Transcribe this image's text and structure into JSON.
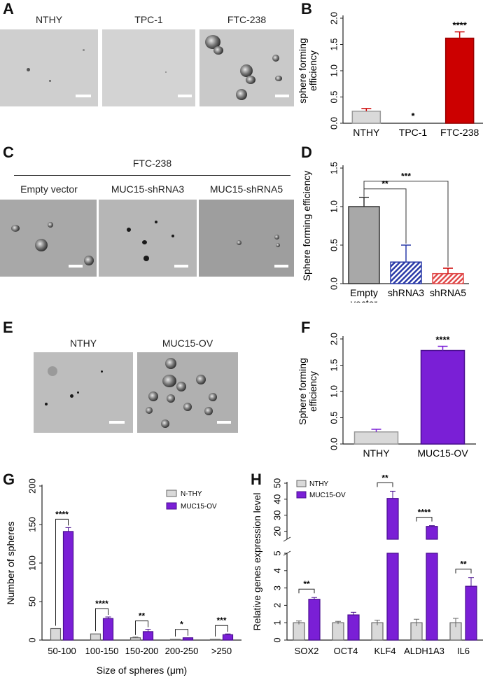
{
  "panels": {
    "A": {
      "letter": "A",
      "images": [
        "NTHY",
        "TPC-1",
        "FTC-238"
      ]
    },
    "B": {
      "letter": "B"
    },
    "C": {
      "letter": "C",
      "header": "FTC-238",
      "images": [
        "Empty vector",
        "MUC15-shRNA3",
        "MUC15-shRNA5"
      ]
    },
    "D": {
      "letter": "D"
    },
    "E": {
      "letter": "E",
      "images": [
        "NTHY",
        "MUC15-OV"
      ]
    },
    "F": {
      "letter": "F"
    },
    "G": {
      "letter": "G"
    },
    "H": {
      "letter": "H"
    }
  },
  "colors": {
    "nthy_gray": "#d9d9d9",
    "ftc_red": "#cc0000",
    "muc15_purple": "#7a1fd6",
    "shrna3_blue": "#2a3aa8",
    "shrna5_red": "#e04a4a",
    "empty_gray": "#a8a8a8",
    "err_red": "#cc0000",
    "err_blue": "#2a3aa8"
  },
  "chart_data": [
    {
      "id": "B",
      "type": "bar",
      "categories": [
        "NTHY",
        "TPC-1",
        "FTC-238"
      ],
      "values": [
        0.23,
        0.0,
        1.62
      ],
      "errors": [
        0.05,
        0.0,
        0.12
      ],
      "significance": [
        "",
        "*",
        "****"
      ],
      "ylabel": "sphere forming efficiency",
      "ylim": [
        0,
        2.0
      ],
      "yticks": [
        "0.0",
        "0.5",
        "1.0",
        "1.5",
        "2.0"
      ]
    },
    {
      "id": "D",
      "type": "bar",
      "categories": [
        "Empty vector",
        "shRNA3",
        "shRNA5"
      ],
      "values": [
        1.0,
        0.28,
        0.13
      ],
      "errors": [
        0.12,
        0.22,
        0.07
      ],
      "ylabel": "Sphere forming efficiency",
      "ylim": [
        0,
        1.5
      ],
      "yticks": [
        "0.0",
        "0.5",
        "1.0",
        "1.5"
      ],
      "brackets": [
        {
          "from": "Empty vector",
          "to": "shRNA3",
          "label": "**"
        },
        {
          "from": "Empty vector",
          "to": "shRNA5",
          "label": "***"
        }
      ]
    },
    {
      "id": "F",
      "type": "bar",
      "categories": [
        "NTHY",
        "MUC15-OV"
      ],
      "values": [
        0.23,
        1.78
      ],
      "errors": [
        0.05,
        0.08
      ],
      "significance": [
        "",
        "****"
      ],
      "ylabel": "Sphere forming efficiency",
      "ylim": [
        0,
        2.0
      ],
      "yticks": [
        "0.0",
        "0.5",
        "1.0",
        "1.5",
        "2.0"
      ]
    },
    {
      "id": "G",
      "type": "bar",
      "categories": [
        "50-100",
        "100-150",
        "150-200",
        "200-250",
        ">250"
      ],
      "series": [
        {
          "name": "N-THY",
          "values": [
            15,
            8,
            3,
            1,
            1
          ],
          "errors": [
            0,
            0,
            1,
            0,
            0
          ]
        },
        {
          "name": "MUC15-OV",
          "values": [
            141,
            28,
            11,
            3,
            7
          ],
          "errors": [
            5,
            2,
            3,
            0,
            1
          ]
        }
      ],
      "significance": [
        "****",
        "****",
        "**",
        "*",
        "***"
      ],
      "xlabel": "Size of spheres (μm)",
      "ylabel": "Number of spheres",
      "ylim": [
        0,
        200
      ],
      "yticks": [
        "0",
        "50",
        "100",
        "150",
        "200"
      ],
      "legend": "top-right"
    },
    {
      "id": "H",
      "type": "bar",
      "categories": [
        "SOX2",
        "OCT4",
        "KLF4",
        "ALDH1A3",
        "IL6"
      ],
      "series": [
        {
          "name": "NTHY",
          "values": [
            1.0,
            1.0,
            1.0,
            1.0,
            1.0
          ],
          "errors": [
            0.1,
            0.08,
            0.15,
            0.2,
            0.25
          ]
        },
        {
          "name": "MUC15-OV",
          "values": [
            2.35,
            1.45,
            40.5,
            23.0,
            3.1
          ],
          "errors": [
            0.1,
            0.15,
            4.5,
            0.5,
            0.5
          ]
        }
      ],
      "significance": [
        "**",
        "",
        "**",
        "****",
        "**"
      ],
      "ylabel": "Relative genes expression level",
      "yticks_lower": [
        "0",
        "1",
        "2",
        "3",
        "4",
        "5"
      ],
      "yticks_upper": [
        "20",
        "30",
        "40",
        "50"
      ],
      "axis_break": [
        5,
        15
      ],
      "legend": "top-left"
    }
  ]
}
